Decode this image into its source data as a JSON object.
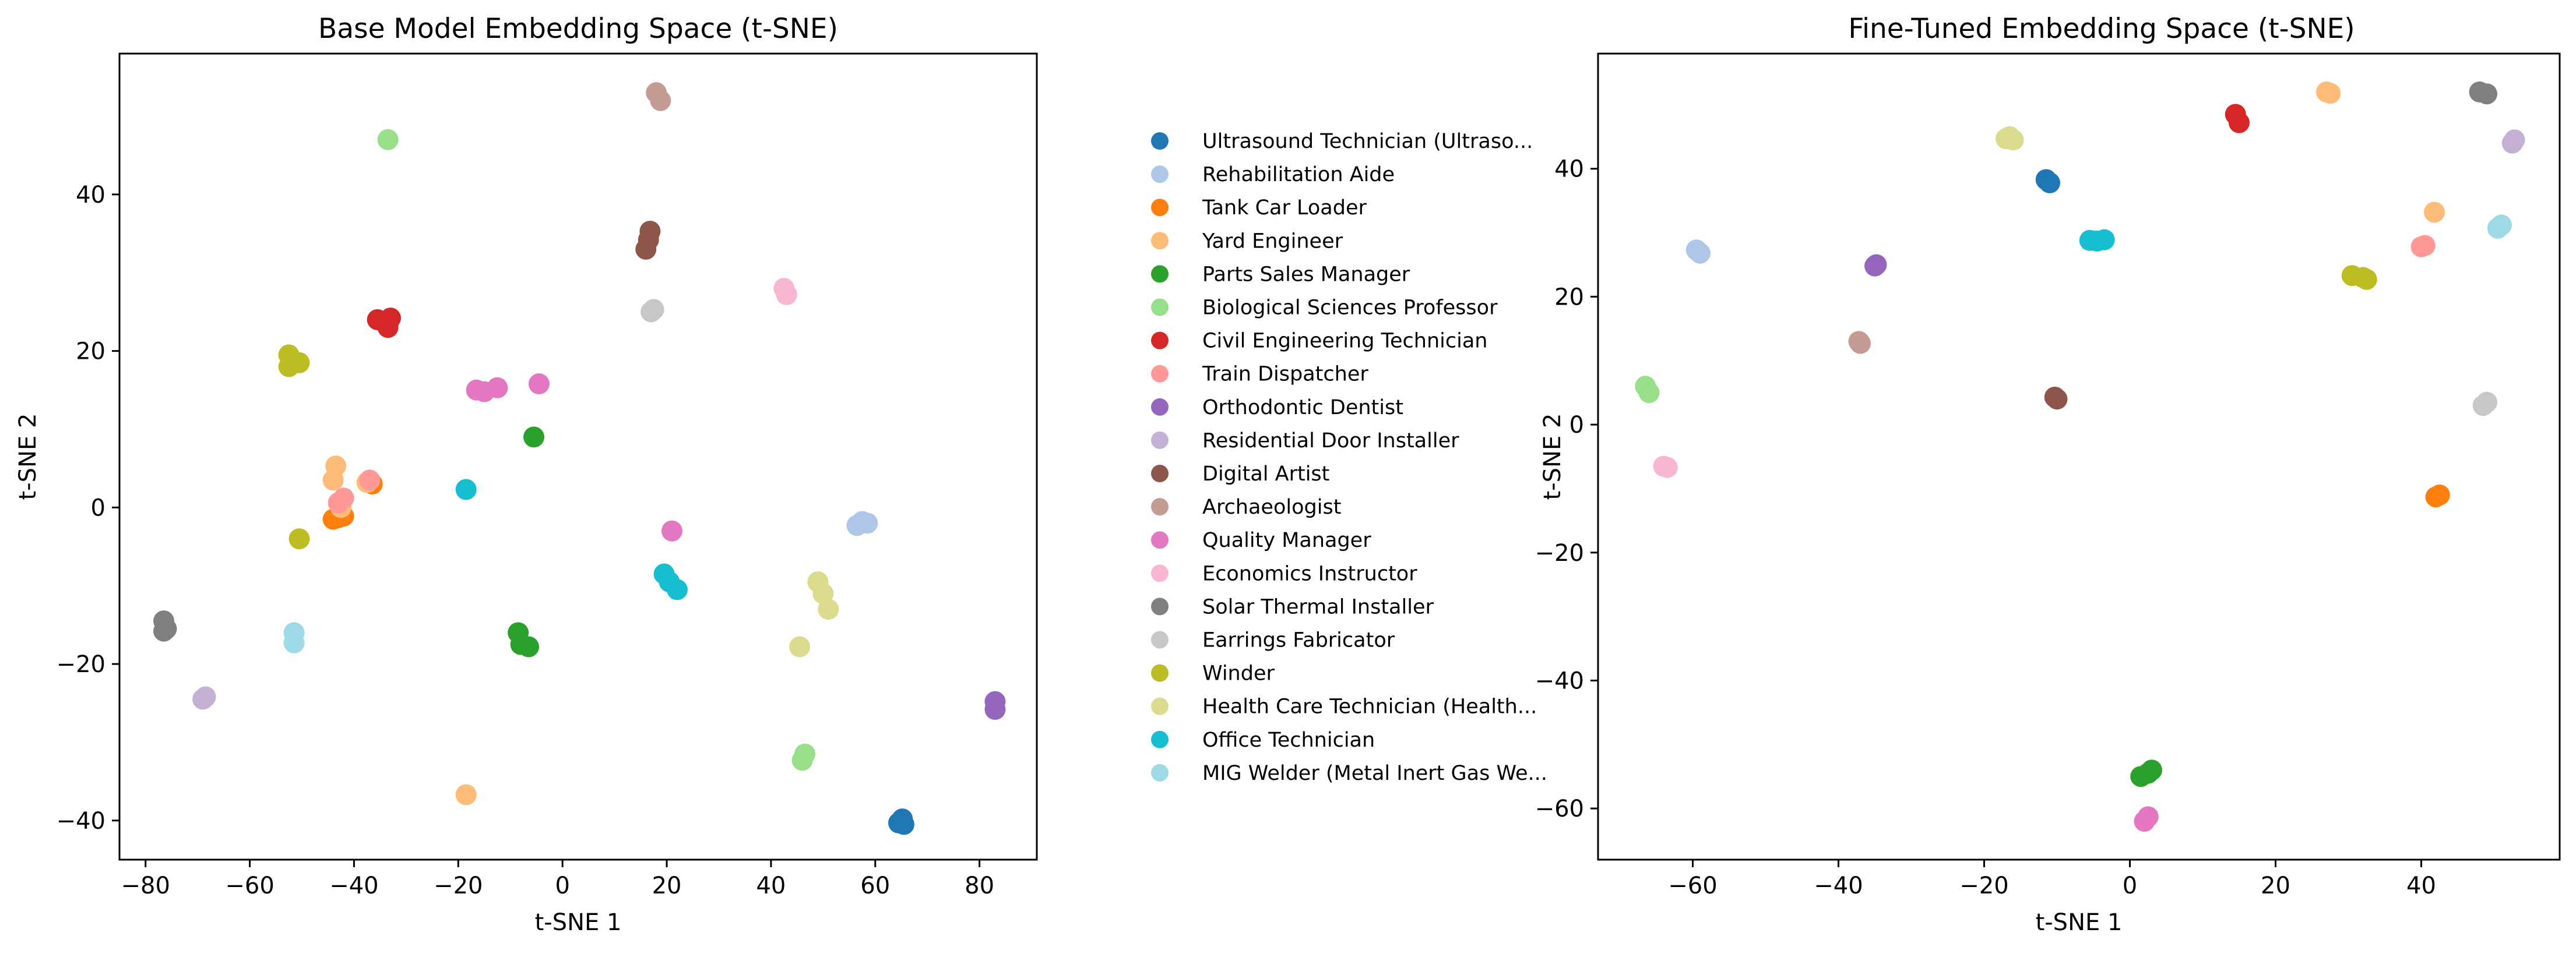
{
  "chart_data": [
    {
      "type": "scatter",
      "title": "Base Model Embedding Space (t-SNE)",
      "xlabel": "t-SNE 1",
      "ylabel": "t-SNE 2",
      "xlim": [
        -85,
        91
      ],
      "ylim": [
        -45,
        58
      ],
      "xticks": [
        -80,
        -60,
        -40,
        -20,
        0,
        20,
        40,
        60,
        80
      ],
      "yticks": [
        -40,
        -20,
        0,
        20,
        40
      ],
      "grid": false,
      "series": [
        {
          "name": "Ultrasound Technician (Ultraso...",
          "color": "#1f77b4",
          "points": [
            [
              64.5,
              -40.3
            ],
            [
              65.2,
              -39.8
            ],
            [
              65.5,
              -40.5
            ]
          ]
        },
        {
          "name": "Rehabilitation Aide",
          "color": "#aec7e8",
          "points": [
            [
              56.5,
              -2.3
            ],
            [
              57.5,
              -1.8
            ],
            [
              58.5,
              -2.0
            ]
          ]
        },
        {
          "name": "Tank Car Loader",
          "color": "#ff7f0e",
          "points": [
            [
              -44.0,
              -1.5
            ],
            [
              -43.0,
              -1.3
            ],
            [
              -42.0,
              -1.1
            ],
            [
              -36.5,
              3.0
            ]
          ]
        },
        {
          "name": "Yard Engineer",
          "color": "#ffbb78",
          "points": [
            [
              -43.5,
              5.3
            ],
            [
              -44.0,
              3.5
            ],
            [
              -42.5,
              0.0
            ],
            [
              -37.5,
              3.2
            ],
            [
              -18.5,
              -36.7
            ]
          ]
        },
        {
          "name": "Parts Sales Manager",
          "color": "#2ca02c",
          "points": [
            [
              -8.5,
              -16.0
            ],
            [
              -8.0,
              -17.5
            ],
            [
              -6.5,
              -17.8
            ],
            [
              -5.5,
              9.0
            ]
          ]
        },
        {
          "name": "Biological Sciences Professor",
          "color": "#98df8a",
          "points": [
            [
              -33.5,
              47.0
            ],
            [
              46.5,
              -31.5
            ],
            [
              46.0,
              -32.3
            ]
          ]
        },
        {
          "name": "Civil Engineering Technician",
          "color": "#d62728",
          "points": [
            [
              -35.5,
              24.0
            ],
            [
              -33.0,
              24.2
            ],
            [
              -33.5,
              23.0
            ]
          ]
        },
        {
          "name": "Train Dispatcher",
          "color": "#ff9896",
          "points": [
            [
              -42.0,
              1.2
            ],
            [
              -43.0,
              0.6
            ],
            [
              -37.0,
              3.5
            ]
          ]
        },
        {
          "name": "Orthodontic Dentist",
          "color": "#9467bd",
          "points": [
            [
              83.0,
              -24.8
            ],
            [
              83.0,
              -25.8
            ]
          ]
        },
        {
          "name": "Residential Door Installer",
          "color": "#c5b0d5",
          "points": [
            [
              -69.0,
              -24.5
            ],
            [
              -68.5,
              -24.2
            ]
          ]
        },
        {
          "name": "Digital Artist",
          "color": "#8c564b",
          "points": [
            [
              16.0,
              33.0
            ],
            [
              16.5,
              34.2
            ],
            [
              16.8,
              35.3
            ]
          ]
        },
        {
          "name": "Archaeologist",
          "color": "#c49c94",
          "points": [
            [
              18.0,
              53.0
            ],
            [
              18.8,
              52.0
            ]
          ]
        },
        {
          "name": "Quality Manager",
          "color": "#e377c2",
          "points": [
            [
              -16.5,
              15.0
            ],
            [
              -15.0,
              14.8
            ],
            [
              -12.5,
              15.3
            ],
            [
              -4.5,
              15.8
            ],
            [
              21.0,
              -3.0
            ]
          ]
        },
        {
          "name": "Economics Instructor",
          "color": "#f7b6d2",
          "points": [
            [
              42.5,
              28.0
            ],
            [
              43.0,
              27.2
            ]
          ]
        },
        {
          "name": "Solar Thermal Installer",
          "color": "#7f7f7f",
          "points": [
            [
              -76.5,
              -14.5
            ],
            [
              -76.0,
              -15.5
            ],
            [
              -76.5,
              -15.8
            ]
          ]
        },
        {
          "name": "Earrings Fabricator",
          "color": "#c7c7c7",
          "points": [
            [
              17.0,
              25.0
            ],
            [
              17.5,
              25.3
            ]
          ]
        },
        {
          "name": "Winder",
          "color": "#bcbd22",
          "points": [
            [
              -52.5,
              19.5
            ],
            [
              -52.5,
              18.0
            ],
            [
              -50.5,
              18.5
            ],
            [
              -50.5,
              -4.0
            ]
          ]
        },
        {
          "name": "Health Care Technician (Health...",
          "color": "#dbdb8d",
          "points": [
            [
              49.0,
              -9.5
            ],
            [
              50.0,
              -11.0
            ],
            [
              51.0,
              -13.0
            ],
            [
              45.5,
              -17.8
            ]
          ]
        },
        {
          "name": "Office Technician",
          "color": "#17becf",
          "points": [
            [
              -18.5,
              2.3
            ],
            [
              19.5,
              -8.5
            ],
            [
              20.5,
              -9.5
            ],
            [
              22.0,
              -10.5
            ]
          ]
        },
        {
          "name": "MIG Welder (Metal Inert Gas We...",
          "color": "#9edae5",
          "points": [
            [
              -51.5,
              -16.0
            ],
            [
              -51.5,
              -17.3
            ]
          ]
        }
      ]
    },
    {
      "type": "scatter",
      "title": "Fine-Tuned Embedding Space (t-SNE)",
      "xlabel": "t-SNE 1",
      "ylabel": "t-SNE 2",
      "xlim": [
        -73,
        59
      ],
      "ylim": [
        -68,
        58
      ],
      "xticks": [
        -60,
        -40,
        -20,
        0,
        20,
        40
      ],
      "yticks": [
        -60,
        -40,
        -20,
        0,
        20,
        40
      ],
      "grid": false,
      "series": [
        {
          "name": "Ultrasound Technician (Ultraso...",
          "color": "#1f77b4",
          "points": [
            [
              -11.5,
              38.3
            ],
            [
              -11.0,
              37.8
            ]
          ]
        },
        {
          "name": "Rehabilitation Aide",
          "color": "#aec7e8",
          "points": [
            [
              -59.5,
              27.3
            ],
            [
              -59.0,
              26.8
            ]
          ]
        },
        {
          "name": "Tank Car Loader",
          "color": "#ff7f0e",
          "points": [
            [
              42.0,
              -11.3
            ],
            [
              42.5,
              -11.0
            ]
          ]
        },
        {
          "name": "Yard Engineer",
          "color": "#ffbb78",
          "points": [
            [
              27.0,
              52.0
            ],
            [
              27.5,
              51.8
            ],
            [
              41.8,
              33.2
            ]
          ]
        },
        {
          "name": "Parts Sales Manager",
          "color": "#2ca02c",
          "points": [
            [
              1.5,
              -55.0
            ],
            [
              2.5,
              -54.5
            ],
            [
              3.0,
              -54.0
            ]
          ]
        },
        {
          "name": "Biological Sciences Professor",
          "color": "#98df8a",
          "points": [
            [
              -66.5,
              6.0
            ],
            [
              -66.0,
              5.0
            ]
          ]
        },
        {
          "name": "Civil Engineering Technician",
          "color": "#d62728",
          "points": [
            [
              14.5,
              48.5
            ],
            [
              15.0,
              47.2
            ]
          ]
        },
        {
          "name": "Train Dispatcher",
          "color": "#ff9896",
          "points": [
            [
              40.0,
              27.8
            ],
            [
              40.5,
              28.0
            ]
          ]
        },
        {
          "name": "Orthodontic Dentist",
          "color": "#9467bd",
          "points": [
            [
              -35.0,
              24.8
            ],
            [
              -34.8,
              25.0
            ]
          ]
        },
        {
          "name": "Residential Door Installer",
          "color": "#c5b0d5",
          "points": [
            [
              52.5,
              44.0
            ],
            [
              52.8,
              44.5
            ]
          ]
        },
        {
          "name": "Digital Artist",
          "color": "#8c564b",
          "points": [
            [
              -10.0,
              4.0
            ],
            [
              -10.3,
              4.3
            ]
          ]
        },
        {
          "name": "Archaeologist",
          "color": "#c49c94",
          "points": [
            [
              -37.2,
              13.0
            ],
            [
              -37.0,
              12.7
            ]
          ]
        },
        {
          "name": "Quality Manager",
          "color": "#e377c2",
          "points": [
            [
              2.0,
              -62.0
            ],
            [
              2.5,
              -61.3
            ]
          ]
        },
        {
          "name": "Economics Instructor",
          "color": "#f7b6d2",
          "points": [
            [
              -64.0,
              -6.5
            ],
            [
              -63.5,
              -6.7
            ]
          ]
        },
        {
          "name": "Solar Thermal Installer",
          "color": "#7f7f7f",
          "points": [
            [
              48.0,
              52.0
            ],
            [
              49.0,
              51.7
            ]
          ]
        },
        {
          "name": "Earrings Fabricator",
          "color": "#c7c7c7",
          "points": [
            [
              48.5,
              3.0
            ],
            [
              49.0,
              3.5
            ]
          ]
        },
        {
          "name": "Winder",
          "color": "#bcbd22",
          "points": [
            [
              30.5,
              23.3
            ],
            [
              32.0,
              23.0
            ],
            [
              32.5,
              22.7
            ]
          ]
        },
        {
          "name": "Health Care Technician (Health...",
          "color": "#dbdb8d",
          "points": [
            [
              -17.0,
              44.7
            ],
            [
              -16.0,
              44.5
            ],
            [
              -16.5,
              45.0
            ]
          ]
        },
        {
          "name": "Office Technician",
          "color": "#17becf",
          "points": [
            [
              -5.5,
              28.8
            ],
            [
              -4.5,
              28.7
            ],
            [
              -3.5,
              28.9
            ]
          ]
        },
        {
          "name": "MIG Welder (Metal Inert Gas We...",
          "color": "#9edae5",
          "points": [
            [
              50.5,
              30.7
            ],
            [
              51.0,
              31.2
            ]
          ]
        }
      ]
    }
  ]
}
